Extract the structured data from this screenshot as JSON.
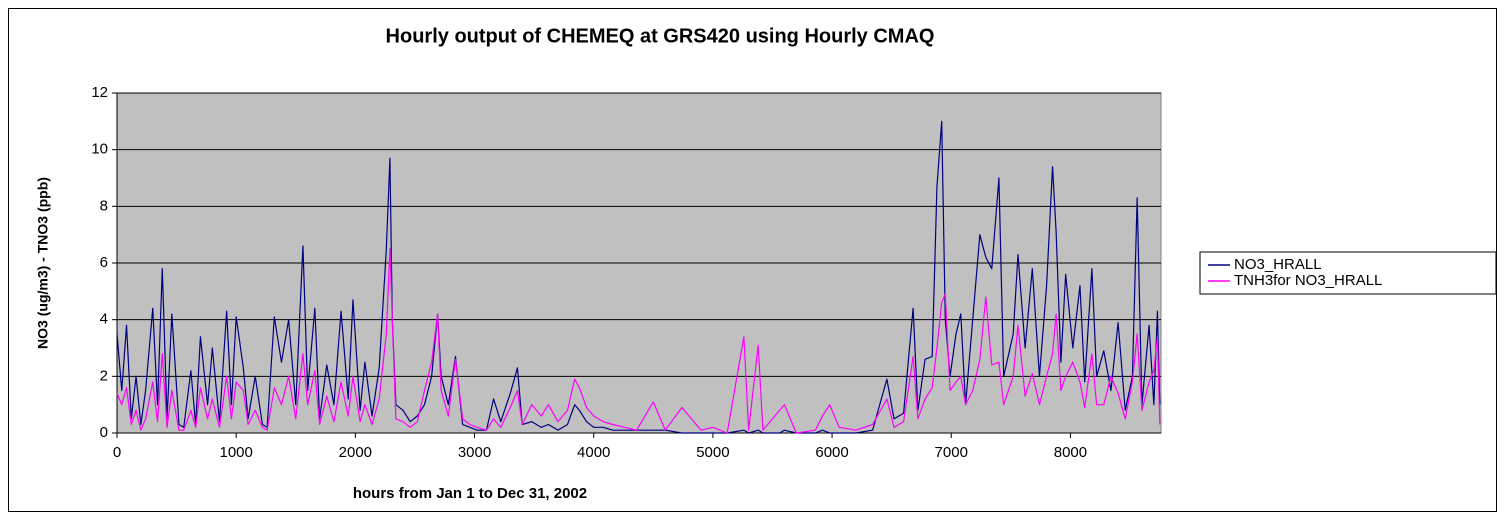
{
  "chart_data": {
    "type": "line",
    "title": "Hourly output of CHEMEQ at GRS420 using Hourly CMAQ",
    "x_label": "hours from Jan 1 to Dec 31, 2002",
    "y_label": "NO3 (ug/m3) - TNO3 (ppb)",
    "x": [
      0,
      40,
      80,
      120,
      160,
      200,
      240,
      300,
      340,
      380,
      420,
      460,
      520,
      560,
      620,
      660,
      700,
      760,
      800,
      860,
      920,
      960,
      1000,
      1060,
      1100,
      1160,
      1220,
      1260,
      1320,
      1380,
      1440,
      1500,
      1560,
      1600,
      1660,
      1700,
      1760,
      1820,
      1880,
      1940,
      1980,
      2040,
      2080,
      2140,
      2200,
      2260,
      2290,
      2310,
      2340,
      2400,
      2460,
      2520,
      2580,
      2640,
      2690,
      2720,
      2780,
      2840,
      2900,
      2960,
      3020,
      3100,
      3160,
      3220,
      3300,
      3360,
      3400,
      3480,
      3560,
      3620,
      3700,
      3780,
      3840,
      3880,
      3940,
      4000,
      4080,
      4160,
      4260,
      4360,
      4500,
      4600,
      4740,
      4900,
      5000,
      5120,
      5260,
      5300,
      5380,
      5420,
      5560,
      5600,
      5700,
      5860,
      5920,
      5980,
      6060,
      6200,
      6340,
      6460,
      6520,
      6600,
      6680,
      6720,
      6780,
      6840,
      6880,
      6920,
      6950,
      6990,
      7040,
      7080,
      7120,
      7180,
      7240,
      7290,
      7340,
      7400,
      7440,
      7520,
      7560,
      7620,
      7680,
      7740,
      7800,
      7850,
      7880,
      7920,
      7960,
      8020,
      8080,
      8120,
      8180,
      8220,
      8280,
      8340,
      8400,
      8460,
      8520,
      8560,
      8600,
      8660,
      8700,
      8730,
      8750
    ],
    "series": [
      {
        "name": "NO3_HRALL",
        "color": "#000080",
        "values": [
          3.5,
          1.5,
          3.8,
          0.5,
          2.0,
          0.3,
          1.5,
          4.4,
          1.0,
          5.8,
          0.5,
          4.2,
          0.3,
          0.2,
          2.2,
          0.3,
          3.4,
          1.0,
          3.0,
          0.4,
          4.3,
          1.0,
          4.1,
          2.3,
          0.5,
          2.0,
          0.3,
          0.2,
          4.1,
          2.5,
          4.0,
          1.0,
          6.6,
          1.5,
          4.4,
          0.5,
          2.4,
          1.0,
          4.3,
          1.2,
          4.7,
          0.8,
          2.5,
          0.6,
          2.3,
          6.5,
          9.7,
          4.0,
          1.0,
          0.8,
          0.4,
          0.6,
          1.0,
          2.0,
          4.2,
          2.0,
          1.0,
          2.7,
          0.3,
          0.2,
          0.1,
          0.1,
          1.2,
          0.4,
          1.4,
          2.3,
          0.3,
          0.4,
          0.2,
          0.3,
          0.1,
          0.3,
          1.0,
          0.8,
          0.4,
          0.2,
          0.2,
          0.1,
          0.1,
          0.1,
          0.1,
          0.1,
          0,
          0,
          0,
          0,
          0.1,
          0,
          0.1,
          0,
          0,
          0.1,
          0,
          0,
          0.1,
          0,
          0,
          0,
          0.1,
          1.9,
          0.5,
          0.7,
          4.4,
          0.8,
          2.6,
          2.7,
          8.7,
          11.0,
          4.0,
          2.0,
          3.5,
          4.2,
          1.0,
          4.0,
          7.0,
          6.2,
          5.8,
          9.0,
          2.0,
          3.5,
          6.3,
          3.0,
          5.8,
          2.0,
          5.2,
          9.4,
          7.1,
          2.5,
          5.6,
          3.0,
          5.2,
          1.8,
          5.8,
          2.0,
          2.9,
          1.5,
          3.9,
          0.8,
          2.0,
          8.3,
          1.0,
          3.8,
          1.0,
          4.3,
          1.0
        ]
      },
      {
        "name": "TNH3for NO3_HRALL",
        "color": "#ff00ff",
        "values": [
          1.4,
          1.0,
          1.6,
          0.3,
          0.8,
          0.1,
          0.5,
          1.8,
          0.4,
          2.8,
          0.2,
          1.5,
          0.1,
          0.1,
          0.8,
          0.2,
          1.6,
          0.5,
          1.2,
          0.2,
          2.0,
          0.5,
          1.8,
          1.5,
          0.3,
          0.8,
          0.2,
          0.1,
          1.6,
          1.0,
          2.0,
          0.5,
          2.8,
          1.0,
          2.2,
          0.3,
          1.3,
          0.4,
          1.8,
          0.6,
          2.0,
          0.4,
          1.0,
          0.3,
          1.2,
          3.5,
          6.5,
          4.0,
          0.5,
          0.4,
          0.2,
          0.4,
          1.5,
          2.5,
          4.2,
          1.5,
          0.6,
          2.6,
          0.5,
          0.3,
          0.2,
          0.1,
          0.5,
          0.2,
          0.9,
          1.5,
          0.3,
          1.0,
          0.6,
          1.0,
          0.4,
          0.8,
          1.9,
          1.6,
          0.9,
          0.6,
          0.4,
          0.3,
          0.2,
          0.1,
          1.1,
          0.1,
          0.9,
          0.1,
          0.2,
          0,
          3.4,
          0.1,
          3.1,
          0.1,
          0.8,
          1.0,
          0,
          0.1,
          0.6,
          1.0,
          0.2,
          0.1,
          0.3,
          1.2,
          0.2,
          0.4,
          2.7,
          0.5,
          1.2,
          1.6,
          3.0,
          4.6,
          4.9,
          1.5,
          1.8,
          2.0,
          1.0,
          1.5,
          2.6,
          4.8,
          2.4,
          2.5,
          1.0,
          2.0,
          3.8,
          1.3,
          2.1,
          1.0,
          2.0,
          2.8,
          4.2,
          1.5,
          2.0,
          2.5,
          1.8,
          0.9,
          2.8,
          1.0,
          1.0,
          2.0,
          1.4,
          0.5,
          1.8,
          3.5,
          0.8,
          1.8,
          2.2,
          3.4,
          0.3
        ]
      }
    ],
    "xlim": [
      0,
      8760
    ],
    "xticks": [
      0,
      1000,
      2000,
      3000,
      4000,
      5000,
      6000,
      7000,
      8000
    ],
    "ylim": [
      0,
      12
    ],
    "yticks": [
      0,
      2,
      4,
      6,
      8,
      10,
      12
    ],
    "grid": true,
    "legend": "right",
    "plot_background": "#c0c0c0"
  }
}
